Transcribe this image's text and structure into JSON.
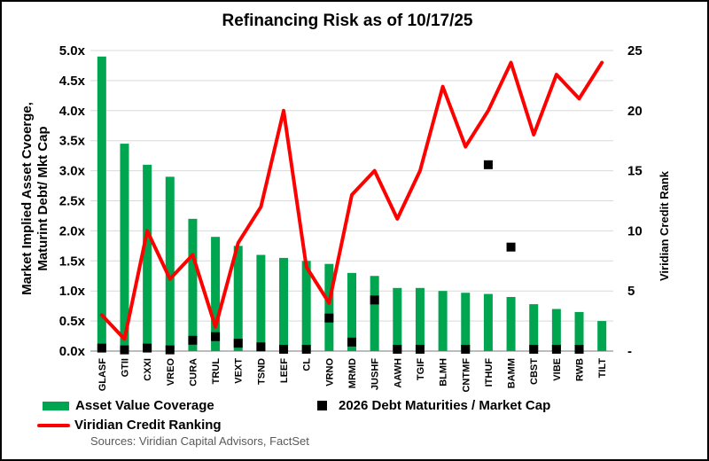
{
  "title": "Refinancing Risk as of 10/17/25",
  "source": "Sources: Viridian Capital Advisors, FactSet",
  "legend": {
    "bars": "Asset Value Coverage",
    "squares": "2026 Debt Maturities / Market Cap",
    "line": "Viridian Credit Ranking"
  },
  "colors": {
    "bar_green": "#00A64F",
    "line_red": "#FF0000",
    "square_black": "#000000",
    "gridline": "#D9D9D9",
    "axis_line": "#A6A6A6",
    "source_text": "#595959"
  },
  "chart_data": {
    "type": "combo (bar + scatter + line)",
    "title": "Refinancing Risk as of 10/17/25",
    "categories": [
      "GLASF",
      "GTII",
      "CXXI",
      "VREO",
      "CURA",
      "TRUL",
      "VEXT",
      "TSND",
      "LEEF",
      "CL",
      "VRNO",
      "MRMD",
      "JUSHF",
      "AAWH",
      "TGIF",
      "BLMH",
      "CNTMF",
      "ITHUF",
      "BAMM",
      "CBST",
      "VIBE",
      "RWB",
      "TILT"
    ],
    "series": [
      {
        "name": "Asset Value Coverage",
        "type": "bar",
        "axis": "left",
        "values": [
          4.9,
          3.45,
          3.1,
          2.9,
          2.2,
          1.9,
          1.75,
          1.6,
          1.55,
          1.5,
          1.45,
          1.3,
          1.25,
          1.05,
          1.05,
          1.0,
          0.97,
          0.95,
          0.9,
          0.78,
          0.7,
          0.65,
          0.5
        ]
      },
      {
        "name": "2026 Debt Maturities / Market Cap",
        "type": "scatter-square",
        "axis": "left",
        "values": [
          0.05,
          0.02,
          0.05,
          0.02,
          0.18,
          0.24,
          0.13,
          0.07,
          0.03,
          0.03,
          0.55,
          0.15,
          0.85,
          0.03,
          0.03,
          null,
          0.03,
          3.1,
          1.73,
          0.03,
          0.03,
          0.03,
          null
        ]
      },
      {
        "name": "Viridian Credit Ranking",
        "type": "line",
        "axis": "right",
        "values": [
          3,
          1,
          10,
          6,
          8,
          2,
          9,
          12,
          20,
          7,
          4,
          13,
          15,
          11,
          15,
          22,
          17,
          20,
          24,
          18,
          23,
          21,
          24
        ]
      }
    ],
    "left_axis": {
      "title_line1": "Market Implied Asset Cvoerge,",
      "title_line2": "Maturint Debt/ Mkt Cap",
      "min": 0,
      "max": 5,
      "gridline_step": 0.5,
      "ticks": [
        {
          "v": 5.0,
          "label": "5.0x"
        },
        {
          "v": 4.5,
          "label": "4.5x"
        },
        {
          "v": 4.0,
          "label": "4.0x"
        },
        {
          "v": 3.5,
          "label": "3.5x"
        },
        {
          "v": 3.0,
          "label": "3.0x"
        },
        {
          "v": 2.5,
          "label": "2.5x"
        },
        {
          "v": 2.0,
          "label": "2.0x"
        },
        {
          "v": 1.5,
          "label": "1.5x"
        },
        {
          "v": 1.0,
          "label": "1.0x"
        },
        {
          "v": 0.5,
          "label": "0.5x"
        },
        {
          "v": 0.0,
          "label": "0.0x"
        }
      ]
    },
    "right_axis": {
      "title": "Viridian Credit Rank",
      "min": 0,
      "max": 25,
      "ticks": [
        {
          "v": 25,
          "label": "25"
        },
        {
          "v": 20,
          "label": "20"
        },
        {
          "v": 15,
          "label": "15"
        },
        {
          "v": 10,
          "label": "10"
        },
        {
          "v": 5,
          "label": "5"
        },
        {
          "v": 0,
          "label": "-"
        }
      ]
    },
    "layout_hints": {
      "grid": true,
      "legend_position": "bottom-left, two rows + scatter entry right",
      "bar_color": "#00A64F",
      "line_color": "#FF0000",
      "square_color": "#000000"
    }
  }
}
